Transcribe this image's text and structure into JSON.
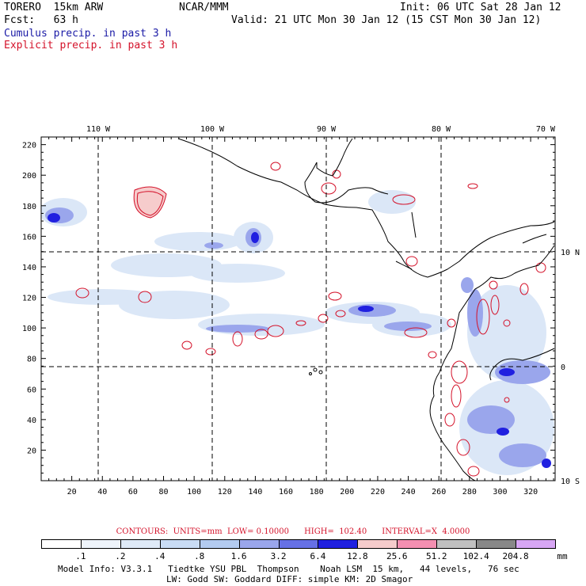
{
  "header": {
    "model": "TORERO  15km ARW",
    "org": "NCAR/MMM",
    "init": "Init: 06 UTC Sat 28 Jan 12",
    "fcst": "Fcst:   63 h",
    "valid": "Valid: 21 UTC Mon 30 Jan 12 (15 CST Mon 30 Jan 12)",
    "line_cumulus": "Cumulus precip. in past 3 h",
    "line_explicit": "Explicit precip. in past 3 h"
  },
  "map": {
    "top_lon_labels": [
      "110 W",
      "100 W",
      "90 W",
      "80 W",
      "70 W"
    ],
    "right_lat_labels": [
      "10 N",
      "0",
      "10 S"
    ],
    "x_ticks": [
      "20",
      "40",
      "60",
      "80",
      "100",
      "120",
      "140",
      "160",
      "180",
      "200",
      "220",
      "240",
      "260",
      "280",
      "300",
      "320"
    ],
    "y_ticks": [
      "20",
      "40",
      "60",
      "80",
      "100",
      "120",
      "140",
      "160",
      "180",
      "200",
      "220"
    ]
  },
  "contours_line": "CONTOURS:  UNITS=mm  LOW= 0.10000      HIGH=  102.40      INTERVAL=X  4.0000",
  "legend": {
    "labels": [
      ".1",
      ".2",
      ".4",
      ".8",
      "1.6",
      "3.2",
      "6.4",
      "12.8",
      "25.6",
      "51.2",
      "102.4",
      "204.8"
    ],
    "unit": "mm",
    "colors": [
      "#ffffff",
      "#eef4fb",
      "#dfeaf8",
      "#c9dcf5",
      "#b3cbf0",
      "#9aa6ec",
      "#6670e6",
      "#2020e0",
      "#f6cccc",
      "#f48fb1",
      "#c0c0c0",
      "#888888",
      "#d7a6f4"
    ]
  },
  "footer": {
    "line1": "Model Info: V3.3.1   Tiedtke YSU PBL  Thompson    Noah LSM  15 km,   44 levels,   76 sec",
    "line2": "LW: Godd SW: Goddard DIFF: simple KM: 2D Smagor"
  }
}
